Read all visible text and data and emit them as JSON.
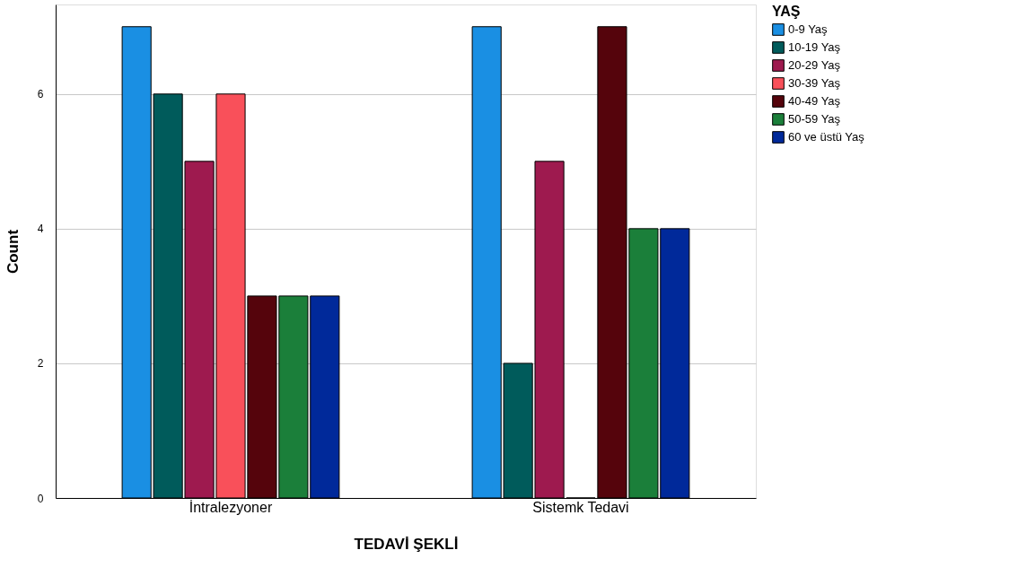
{
  "chart_data": {
    "type": "bar",
    "xlabel": "TEDAVİ ŞEKLİ",
    "ylabel": "Count",
    "legend_title": "YAŞ",
    "categories": [
      "İntralezyoner",
      "Sistemk Tedavi"
    ],
    "series": [
      {
        "name": "0-9 Yaş",
        "color": "#1a8fe3",
        "values": [
          7,
          7
        ]
      },
      {
        "name": "10-19 Yaş",
        "color": "#005b5b",
        "values": [
          6,
          2
        ]
      },
      {
        "name": "20-29 Yaş",
        "color": "#9e1a4f",
        "values": [
          5,
          5
        ]
      },
      {
        "name": "30-39 Yaş",
        "color": "#f9505a",
        "values": [
          6,
          0
        ]
      },
      {
        "name": "40-49 Yaş",
        "color": "#55040c",
        "values": [
          3,
          7
        ]
      },
      {
        "name": "50-59 Yaş",
        "color": "#1b7f3a",
        "values": [
          3,
          4
        ]
      },
      {
        "name": "60 ve üstü Yaş",
        "color": "#00299a",
        "values": [
          3,
          4
        ]
      }
    ],
    "ylim": [
      0,
      7.33
    ],
    "yticks": [
      0,
      2,
      4,
      6
    ],
    "grid": "y",
    "legend": "top right"
  }
}
